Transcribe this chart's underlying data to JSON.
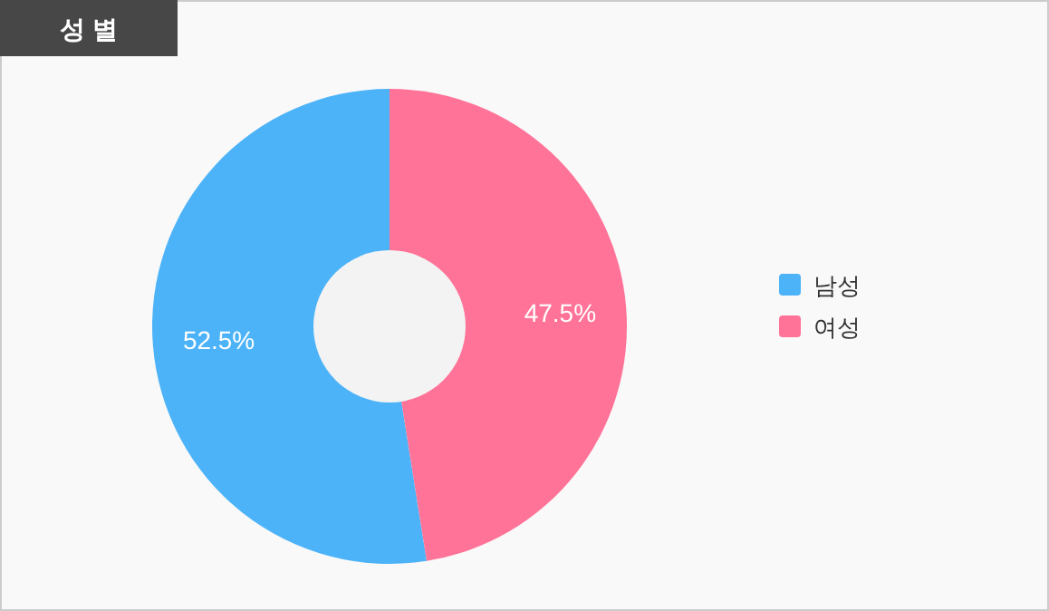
{
  "chart_data": {
    "type": "donut",
    "title": "성 별",
    "categories": [
      "남성",
      "여성"
    ],
    "values": [
      52.5,
      47.5
    ],
    "colors": [
      "#4db3f8",
      "#ff7398"
    ],
    "value_labels": [
      "52.5%",
      "47.5%"
    ],
    "legend": "right"
  }
}
